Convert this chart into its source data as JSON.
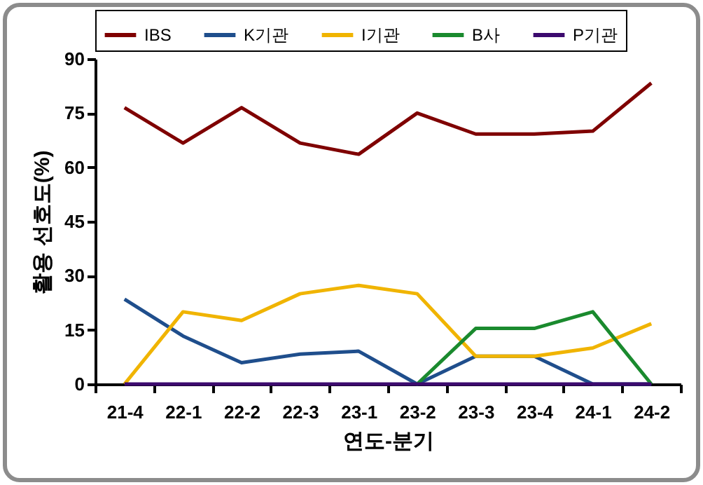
{
  "chart_data": {
    "type": "line",
    "xlabel": "연도-분기",
    "ylabel": "활용 선호도(%)",
    "categories": [
      "21-4",
      "22-1",
      "22-2",
      "22-3",
      "23-1",
      "23-2",
      "23-3",
      "23-4",
      "24-1",
      "24-2"
    ],
    "series": [
      {
        "name": "IBS",
        "color": "#7f0000",
        "values": [
          76.5,
          66.7,
          76.5,
          66.7,
          63.6,
          75,
          69.2,
          69.2,
          70,
          83.3
        ]
      },
      {
        "name": "K기관",
        "color": "#1f4e8c",
        "values": [
          23.5,
          13.3,
          5.9,
          8.3,
          9.1,
          0,
          7.7,
          7.7,
          0,
          0
        ]
      },
      {
        "name": "I기관",
        "color": "#f0b400",
        "values": [
          0,
          20,
          17.6,
          25,
          27.3,
          25,
          7.7,
          7.7,
          10,
          16.7
        ]
      },
      {
        "name": "B사",
        "color": "#1a8a2e",
        "values": [
          null,
          null,
          null,
          null,
          null,
          0,
          15.4,
          15.4,
          20,
          0
        ]
      },
      {
        "name": "P기관",
        "color": "#3c0a6e",
        "values": [
          0,
          0,
          0,
          0,
          0,
          0,
          0,
          0,
          0,
          0
        ]
      }
    ],
    "ylim": [
      0,
      90
    ],
    "yticks": [
      0,
      15,
      30,
      45,
      60,
      75,
      90
    ],
    "grid": false,
    "legend": "top",
    "marker": "none",
    "line_style": "solid"
  }
}
